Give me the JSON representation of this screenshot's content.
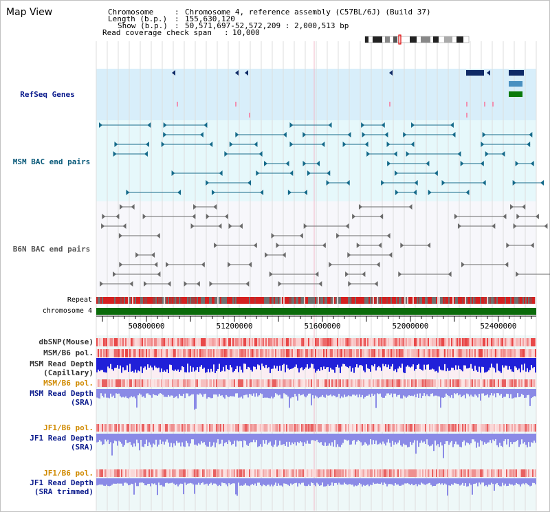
{
  "title": "Map View",
  "info": {
    "chromosome_key": "Chromosome",
    "chromosome_value": "Chromosome 4, reference assembly (C57BL/6J) (Build 37)",
    "length_key": "Length (b.p.)",
    "length_value": "155,630,120",
    "show_key": "Show (b.p.)",
    "show_value": "50,571,697-52,572,209 : 2,000,513 bp",
    "coverage_key": "Read coverage check span",
    "coverage_value": "10,000"
  },
  "tracks": {
    "refseq": "RefSeq Genes",
    "msm_bac": "MSM BAC end pairs",
    "b6n_bac": "B6N BAC end pairs",
    "repeat": "Repeat",
    "chromosome": "chromosome 4",
    "dbsnp": "dbSNP(Mouse)",
    "msm_b6_pol_1": "MSM/B6 pol.",
    "msm_depth_cap_1": "MSM Read Depth",
    "msm_depth_cap_2": "(Capillary)",
    "msm_b6_pol_2": "MSM/B6 pol.",
    "msm_depth_sra_1": "MSM Read Depth",
    "msm_depth_sra_2": "(SRA)",
    "jf1_b6_pol_1": "JF1/B6 pol.",
    "jf1_depth_sra_1": "JF1 Read Depth",
    "jf1_depth_sra_2": "(SRA)",
    "jf1_b6_pol_2": "JF1/B6 pol.",
    "jf1_depth_trim_1": "JF1 Read Depth",
    "jf1_depth_trim_2": "(SRA trimmed)"
  },
  "axis": {
    "range": [
      50571697,
      52572209
    ],
    "ticks": [
      {
        "value": 50800000,
        "label": "50800000"
      },
      {
        "value": 51200000,
        "label": "51200000"
      },
      {
        "value": 51600000,
        "label": "51600000"
      },
      {
        "value": 52000000,
        "label": "52000000"
      },
      {
        "value": 52400000,
        "label": "52400000"
      }
    ]
  },
  "colors": {
    "refseq_bg": "#d8eefa",
    "msm_bg": "#e6f8fb",
    "b6n_bg": "#f7f7fb",
    "lower_bg": "#eef8f8",
    "gene_navy": "#0f2a66",
    "gene_blue": "#4a90c0",
    "gene_green": "#0a7a0a",
    "msm_pair": "#156a8a",
    "b6n_pair": "#6a6a6a",
    "chrom_bar": "#0b6b0b",
    "depth_dark": "#2020d8",
    "depth_light": "#8a8ae6",
    "label_navy": "#0a1a8c",
    "label_teal": "#0a5a7a",
    "label_orange": "#d08a00"
  }
}
